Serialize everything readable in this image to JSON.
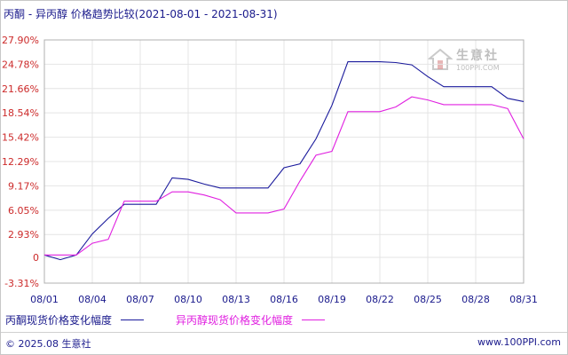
{
  "title": "丙酮 - 异丙醇 价格趋势比较(2021-08-01 - 2021-08-31)",
  "watermark": {
    "name": "生意社",
    "url": "100PPI.COM"
  },
  "footer": {
    "copyright": "© 2025.08 生意社",
    "website": "www.100PPI.com"
  },
  "colors": {
    "series1": "#1a1a9c",
    "series2": "#e020e0",
    "ytick": "#cc2a2a",
    "xtick": "#1a1a8c",
    "grid": "#e4e4e4"
  },
  "chart_data": {
    "type": "line",
    "title": "丙酮 - 异丙醇 价格趋势比较(2021-08-01 - 2021-08-31)",
    "xlabel": "",
    "ylabel": "",
    "ylim": [
      -3.31,
      27.9
    ],
    "yticks": [
      "27.90%",
      "24.78%",
      "21.66%",
      "18.54%",
      "15.42%",
      "12.29%",
      "9.17%",
      "6.05%",
      "2.93%",
      "0",
      "-3.31%"
    ],
    "ytick_values": [
      27.9,
      24.78,
      21.66,
      18.54,
      15.42,
      12.29,
      9.17,
      6.05,
      2.93,
      0,
      -3.31
    ],
    "xticks": [
      "08/01",
      "08/04",
      "08/07",
      "08/10",
      "08/13",
      "08/16",
      "08/19",
      "08/22",
      "08/25",
      "08/28",
      "08/31"
    ],
    "xtick_days": [
      1,
      4,
      7,
      10,
      13,
      16,
      19,
      22,
      25,
      28,
      31
    ],
    "grid": true,
    "legend_position": "bottom",
    "series": [
      {
        "name": "丙酮现货价格变化幅度",
        "color": "#1a1a9c",
        "points": [
          [
            1,
            0.3
          ],
          [
            2,
            -0.3
          ],
          [
            3,
            0.3
          ],
          [
            4,
            3.0
          ],
          [
            5,
            5.0
          ],
          [
            6,
            6.8
          ],
          [
            7,
            6.8
          ],
          [
            8,
            6.8
          ],
          [
            9,
            10.2
          ],
          [
            10,
            10.0
          ],
          [
            11,
            9.4
          ],
          [
            12,
            8.9
          ],
          [
            13,
            8.9
          ],
          [
            14,
            8.9
          ],
          [
            15,
            8.9
          ],
          [
            16,
            11.5
          ],
          [
            17,
            12.0
          ],
          [
            18,
            15.2
          ],
          [
            19,
            19.5
          ],
          [
            20,
            25.1
          ],
          [
            21,
            25.1
          ],
          [
            22,
            25.1
          ],
          [
            23,
            25.0
          ],
          [
            24,
            24.7
          ],
          [
            25,
            23.2
          ],
          [
            26,
            21.9
          ],
          [
            27,
            21.9
          ],
          [
            28,
            21.9
          ],
          [
            29,
            21.9
          ],
          [
            30,
            20.4
          ],
          [
            31,
            20.0
          ]
        ]
      },
      {
        "name": "异丙醇现货价格变化幅度",
        "color": "#e020e0",
        "points": [
          [
            1,
            0.3
          ],
          [
            2,
            0.3
          ],
          [
            3,
            0.3
          ],
          [
            4,
            1.8
          ],
          [
            5,
            2.3
          ],
          [
            6,
            7.2
          ],
          [
            7,
            7.2
          ],
          [
            8,
            7.2
          ],
          [
            9,
            8.4
          ],
          [
            10,
            8.4
          ],
          [
            11,
            8.0
          ],
          [
            12,
            7.4
          ],
          [
            13,
            5.7
          ],
          [
            14,
            5.7
          ],
          [
            15,
            5.7
          ],
          [
            16,
            6.2
          ],
          [
            17,
            9.8
          ],
          [
            18,
            13.1
          ],
          [
            19,
            13.6
          ],
          [
            20,
            18.7
          ],
          [
            21,
            18.7
          ],
          [
            22,
            18.7
          ],
          [
            23,
            19.3
          ],
          [
            24,
            20.6
          ],
          [
            25,
            20.2
          ],
          [
            26,
            19.6
          ],
          [
            27,
            19.6
          ],
          [
            28,
            19.6
          ],
          [
            29,
            19.6
          ],
          [
            30,
            19.1
          ],
          [
            31,
            15.2
          ]
        ]
      }
    ]
  }
}
